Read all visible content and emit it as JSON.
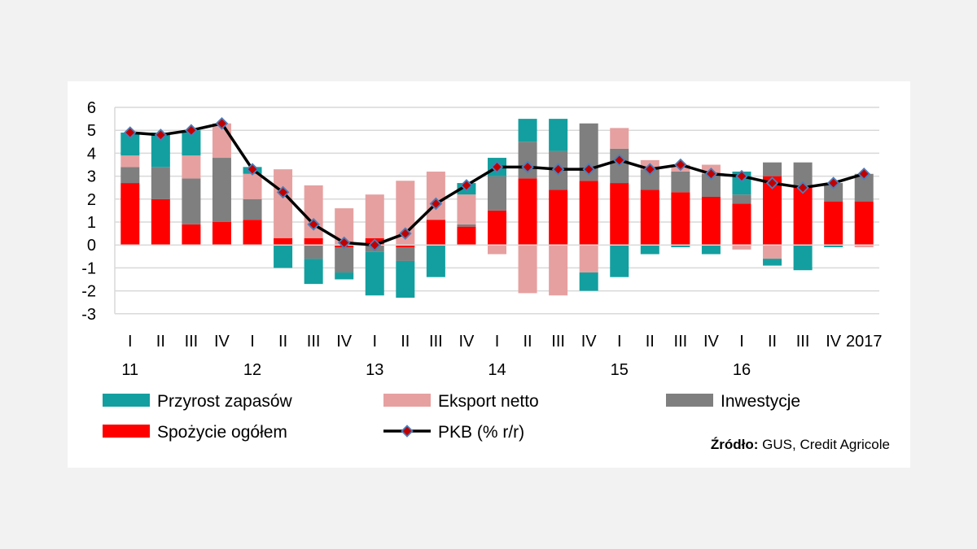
{
  "chart_data": {
    "type": "bar",
    "stacked": true,
    "categories": [
      "I",
      "II",
      "III",
      "IV",
      "I",
      "II",
      "III",
      "IV",
      "I",
      "II",
      "III",
      "IV",
      "I",
      "II",
      "III",
      "IV",
      "I",
      "II",
      "III",
      "IV",
      "I",
      "II",
      "III",
      "IV",
      "2017"
    ],
    "year_labels": [
      "11",
      "12",
      "13",
      "14",
      "15",
      "16"
    ],
    "yticks": [
      "6",
      "5",
      "4",
      "3",
      "2",
      "1",
      "0",
      "-1",
      "-2",
      "-3"
    ],
    "ylim": [
      -3,
      6
    ],
    "series": [
      {
        "name": "Spożycie ogółem",
        "color": "#ff0000",
        "values": [
          2.7,
          2.0,
          0.9,
          1.0,
          1.1,
          0.3,
          0.3,
          -0.1,
          0.3,
          -0.1,
          1.1,
          0.8,
          1.5,
          2.9,
          2.4,
          2.8,
          2.7,
          2.4,
          2.3,
          2.1,
          1.8,
          3.0,
          2.6,
          1.9,
          1.9
        ]
      },
      {
        "name": "Inwestycje",
        "color": "#7f7f7f",
        "values": [
          0.7,
          1.4,
          2.0,
          2.8,
          0.9,
          0,
          -0.6,
          -1.1,
          -0.3,
          -0.6,
          0,
          0.1,
          1.5,
          1.6,
          1.7,
          2.5,
          1.5,
          0.9,
          0.9,
          1.0,
          0.4,
          0.6,
          1.0,
          0.8,
          1.2
        ]
      },
      {
        "name": "Eksport netto",
        "color": "#e6a0a0",
        "values": [
          0.5,
          0,
          1.0,
          1.5,
          1.1,
          3.0,
          2.3,
          1.6,
          1.9,
          2.8,
          2.1,
          1.3,
          -0.4,
          -2.1,
          -2.2,
          -1.2,
          0.9,
          0.4,
          0.3,
          0.4,
          -0.2,
          -0.6,
          0,
          0,
          -0.1
        ]
      },
      {
        "name": "Przyrost zapasów",
        "color": "#139f9f",
        "values": [
          1.0,
          1.5,
          1.1,
          0,
          0.3,
          -1.0,
          -1.1,
          -0.3,
          -1.9,
          -1.6,
          -1.4,
          0.5,
          0.8,
          1.0,
          1.4,
          -0.8,
          -1.4,
          -0.4,
          -0.1,
          -0.4,
          1.0,
          -0.3,
          -1.1,
          -0.1,
          0
        ]
      }
    ],
    "line": {
      "name": "PKB (% r/r)",
      "values": [
        4.9,
        4.8,
        5.0,
        5.3,
        3.3,
        2.3,
        0.9,
        0.1,
        0.0,
        0.5,
        1.8,
        2.6,
        3.4,
        3.4,
        3.3,
        3.3,
        3.7,
        3.3,
        3.5,
        3.1,
        3.0,
        2.7,
        2.5,
        2.7,
        3.1
      ]
    },
    "legend": [
      {
        "label": "Przyrost zapasów",
        "kind": "bar",
        "color": "#139f9f"
      },
      {
        "label": "Eksport netto",
        "kind": "bar",
        "color": "#e6a0a0"
      },
      {
        "label": "Inwestycje",
        "kind": "bar",
        "color": "#7f7f7f"
      },
      {
        "label": "Spożycie ogółem",
        "kind": "bar",
        "color": "#ff0000"
      },
      {
        "label": "PKB (% r/r)",
        "kind": "line",
        "color": "#000000"
      }
    ],
    "source_bold": "Źródło:",
    "source_text": " GUS, Credit Agricole",
    "grid": true
  }
}
